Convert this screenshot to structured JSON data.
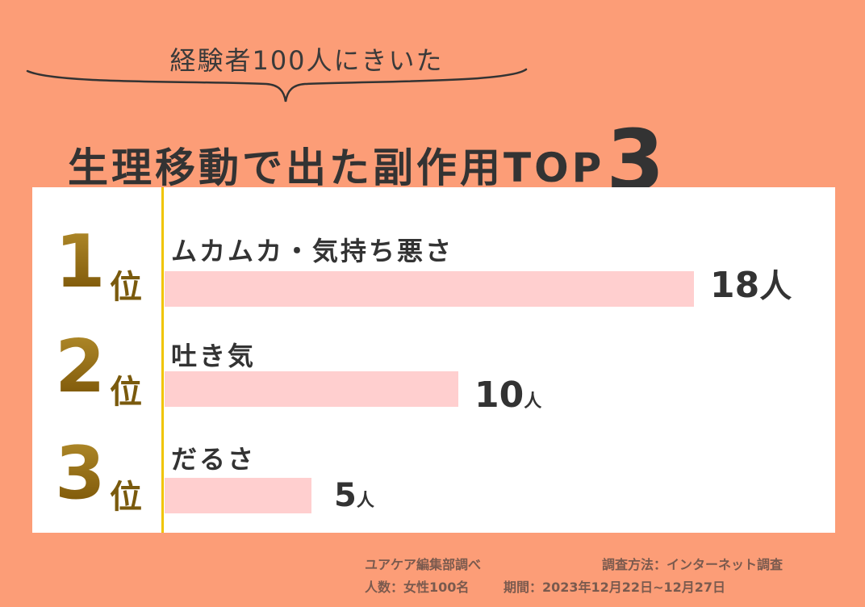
{
  "header": {
    "subtitle": "経験者100人にきいた",
    "title": "生理移動で出た副作用TOP",
    "title_number": "3"
  },
  "colors": {
    "background": "#fc9d77",
    "panel": "#ffffff",
    "bar": "#ffcfcf",
    "divider": "#f0c400",
    "rank": "#8a6512"
  },
  "chart_data": {
    "type": "bar",
    "orientation": "horizontal",
    "categories": [
      "ムカムカ・気持ち悪さ",
      "吐き気",
      "だるさ"
    ],
    "values": [
      18,
      10,
      5
    ],
    "ranks": [
      {
        "number": "1",
        "suffix": "位"
      },
      {
        "number": "2",
        "suffix": "位"
      },
      {
        "number": "3",
        "suffix": "位"
      }
    ],
    "value_labels": [
      {
        "number": "18",
        "unit": "人"
      },
      {
        "number": "10",
        "unit": "人"
      },
      {
        "number": "5",
        "unit": "人"
      }
    ]
  },
  "footer": {
    "source": "ユアケア編集部調べ",
    "method": "調査方法：インターネット調査",
    "respondents": "人数：女性100名",
    "period": "期間：2023年12月22日~12月27日"
  }
}
